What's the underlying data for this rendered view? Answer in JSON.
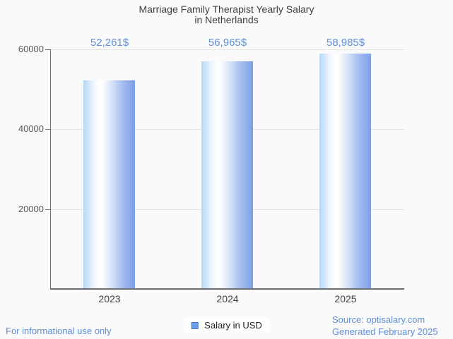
{
  "title": {
    "line1": "Marriage Family Therapist Yearly Salary",
    "line2": "in Netherlands"
  },
  "chart_data": {
    "type": "bar",
    "title": "Marriage Family Therapist Yearly Salary in Netherlands",
    "categories": [
      "2023",
      "2024",
      "2025"
    ],
    "values": [
      52261,
      56965,
      58985
    ],
    "value_labels": [
      "52,261$",
      "56,965$",
      "58,985$"
    ],
    "series": [
      {
        "name": "Salary in USD",
        "values": [
          52261,
          56965,
          58985
        ]
      }
    ],
    "xlabel": "",
    "ylabel": "",
    "ylim": [
      0,
      60000
    ],
    "yticks": [
      20000,
      40000,
      60000
    ],
    "ytick_labels": [
      "20000",
      "40000",
      "60000"
    ],
    "grid": true,
    "legend_position": "bottom-center"
  },
  "legend": {
    "label": "Salary in USD"
  },
  "footer": {
    "disclaimer": "For informational use only",
    "source": "Source: optisalary.com",
    "generated": "Generated February 2025"
  },
  "colors": {
    "page_bg": "#FAFAFA",
    "accent_blue": "#5E8FD9",
    "bar_gradient_left": "#B5D8F8",
    "bar_gradient_mid": "#FFFFFF",
    "bar_gradient_right": "#7C9FE8",
    "legend_fill": "#6D9EEB",
    "legend_border": "#4A7CC7",
    "axis": "#6E6E6E",
    "grid": "#E4E4E4",
    "title_text": "#3F3F3F",
    "tick_text": "#585858"
  }
}
